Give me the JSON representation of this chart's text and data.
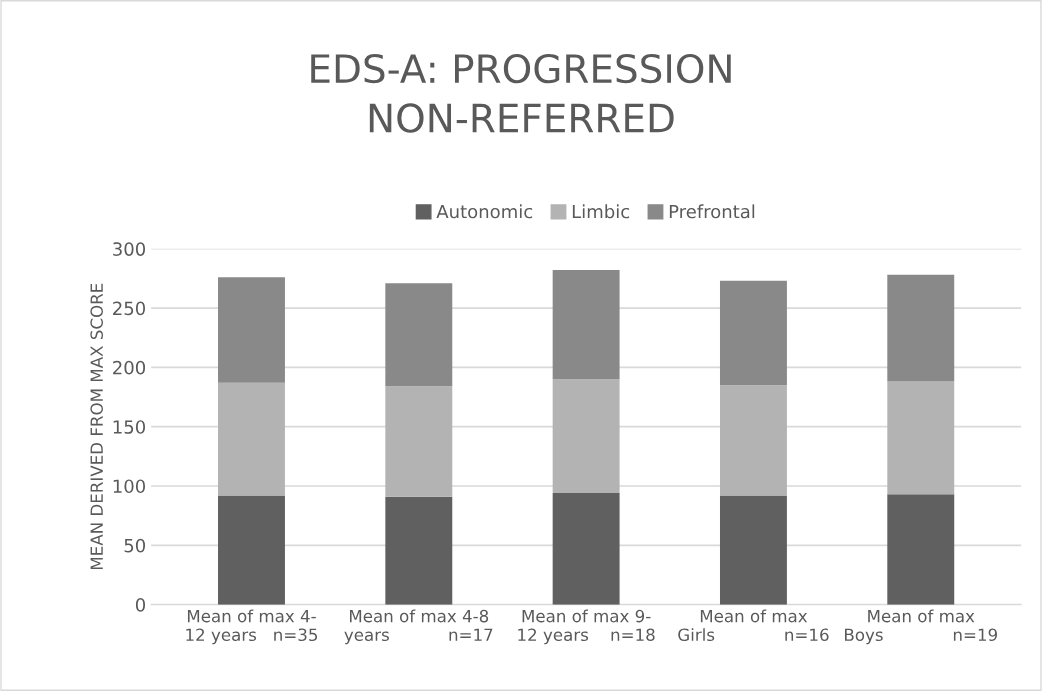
{
  "chart_data": {
    "type": "bar",
    "stacked": true,
    "title": "EDS-A: PROGRESSION\nNON-REFERRED",
    "ylabel": "MEAN DERIVED FROM MAX SCORE",
    "categories": [
      "Mean of max 4-\n12 years   n=35",
      "Mean of max 4-8\nyears           n=17",
      "Mean of max 9-\n12 years    n=18",
      "Mean of max\nGirls             n=16",
      "Mean of max\nBoys             n=19"
    ],
    "series": [
      {
        "name": "Autonomic",
        "color": "#606060",
        "values": [
          92,
          91,
          94,
          92,
          93
        ]
      },
      {
        "name": "Limbic",
        "color": "#b3b3b3",
        "values": [
          95,
          93,
          96,
          93,
          95
        ]
      },
      {
        "name": "Prefrontal",
        "color": "#898989",
        "values": [
          89,
          87,
          92,
          88,
          90
        ]
      }
    ],
    "ylim": [
      0,
      300
    ],
    "yticks": [
      0,
      50,
      100,
      150,
      200,
      250,
      300
    ],
    "grid": "y",
    "legend": "top"
  }
}
